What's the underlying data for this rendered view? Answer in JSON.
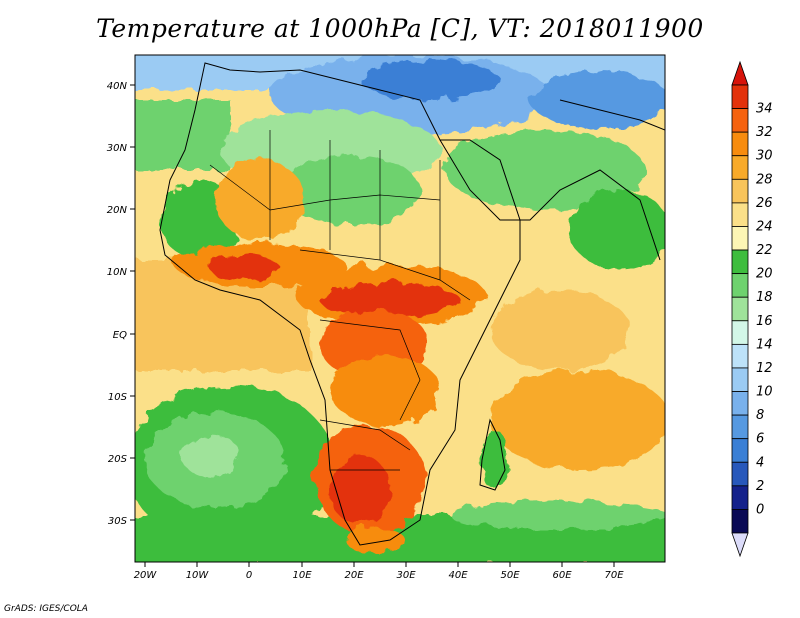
{
  "title": "Temperature at 1000hPa [C], VT: 2018011900",
  "credit": "GrADS: IGES/COLA",
  "x_ticks": [
    "20W",
    "10W",
    "0",
    "10E",
    "20E",
    "30E",
    "40E",
    "50E",
    "60E",
    "70E"
  ],
  "y_ticks": [
    "40N",
    "30N",
    "20N",
    "10N",
    "EQ",
    "10S",
    "20S",
    "30S"
  ],
  "colorbar": {
    "labels": [
      "34",
      "32",
      "30",
      "28",
      "26",
      "24",
      "22",
      "20",
      "18",
      "16",
      "14",
      "12",
      "10",
      "8",
      "6",
      "4",
      "2",
      "0"
    ],
    "colors": [
      "#e3320b",
      "#f5620f",
      "#f78c0f",
      "#f8aa2a",
      "#f8c45b",
      "#fbe089",
      "#fdf6b5",
      "#3ebd3e",
      "#6ed26e",
      "#9fe39a",
      "#d3f7e8",
      "#bde2f9",
      "#9bcbf3",
      "#79b1ec",
      "#5699e1",
      "#3a7fd5",
      "#2758bb",
      "#14218b",
      "#0a0a55"
    ],
    "over_color": "#d7140b",
    "under_color": "#dcdcfa"
  }
}
